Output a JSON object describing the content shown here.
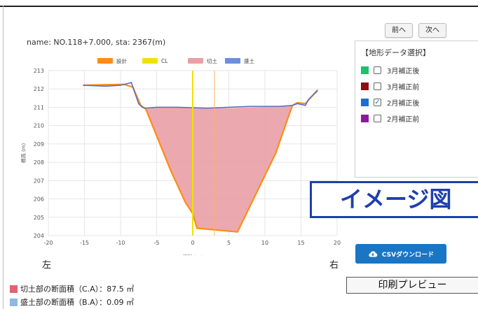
{
  "chart_name": "name: NO.118+7.000, sta: 2367(m)",
  "nav": {
    "prev_label": "前へ",
    "next_label": "次へ"
  },
  "terrain": {
    "title": "【地形データ選択】",
    "items": [
      {
        "label": "3月補正後",
        "color": "#1fc06a",
        "checked": false
      },
      {
        "label": "3月補正前",
        "color": "#8b1010",
        "checked": false
      },
      {
        "label": "2月補正後",
        "color": "#1d6fd1",
        "checked": true
      },
      {
        "label": "2月補正前",
        "color": "#8a1a9b",
        "checked": false
      }
    ]
  },
  "image_banner": "イメージ図",
  "csv_label": "CSVダウンロード",
  "print_label": "印刷プレビュー",
  "side_left": "左",
  "side_right": "右",
  "areas": [
    {
      "text": "切土部の断面積（C.A）：87.5 ㎡",
      "color": "#e06470"
    },
    {
      "text": "盛土部の断面積（B.A）：0.09 ㎡",
      "color": "#8fb8df"
    }
  ],
  "chart_data": {
    "type": "area",
    "xlabel": "距離 (m)",
    "ylabel": "標高 (m)",
    "xlim": [
      -20,
      20
    ],
    "ylim": [
      204,
      213
    ],
    "xticks": [
      -20,
      -15,
      -10,
      -5,
      0,
      5,
      10,
      15,
      20
    ],
    "yticks": [
      204,
      205,
      206,
      207,
      208,
      209,
      210,
      211,
      212,
      213
    ],
    "grid": true,
    "legend_position": "top",
    "colors": {
      "design": "#ff8c14",
      "cl": "#f0e200",
      "cut": "#ea9ea6",
      "fill": "#6e8fd6",
      "ground": "#5a6fbf",
      "marker": "#ffb060"
    },
    "series": [
      {
        "name": "設計",
        "x": [
          -15.2,
          -9.5,
          -8.3,
          -7.2,
          -6.5,
          -3,
          -1,
          0,
          0.6,
          6.2,
          11.5,
          13.8,
          14.5,
          15.6,
          16.5,
          17.3
        ],
        "y": [
          212.2,
          212.25,
          212.1,
          211.1,
          210.9,
          207.5,
          205.8,
          205.2,
          204.4,
          204.2,
          208.5,
          211.1,
          211.25,
          211.2,
          211.6,
          211.9
        ]
      },
      {
        "name": "CL",
        "x": [
          0,
          0
        ],
        "y": [
          204,
          213
        ]
      },
      {
        "name": "切土",
        "x": [
          -6.5,
          -3,
          -1,
          0,
          0.6,
          6.2,
          11.5,
          13.8,
          13.8,
          12,
          8,
          5,
          2,
          -2,
          -5,
          -6.5
        ],
        "y": [
          210.9,
          207.5,
          205.8,
          205.2,
          204.4,
          204.2,
          208.5,
          211.1,
          211.1,
          211.05,
          211.0,
          210.95,
          210.95,
          211.0,
          211.0,
          210.9
        ]
      },
      {
        "name": "盛土",
        "x": [
          -15.2,
          -12,
          -10,
          -9,
          -8.5,
          -8.2,
          -7.5,
          -7,
          -6.5,
          -5,
          -2,
          2,
          5,
          8,
          12,
          13.8,
          14.5,
          15.6,
          16,
          17.3
        ],
        "y": [
          212.2,
          212.15,
          212.2,
          212.3,
          212.35,
          212.0,
          211.2,
          211.0,
          210.95,
          211.0,
          211.0,
          210.95,
          211.0,
          211.05,
          211.05,
          211.1,
          211.2,
          211.1,
          211.4,
          211.95
        ]
      }
    ],
    "markers": [
      {
        "x": 3,
        "color": "#ffb060"
      }
    ]
  }
}
